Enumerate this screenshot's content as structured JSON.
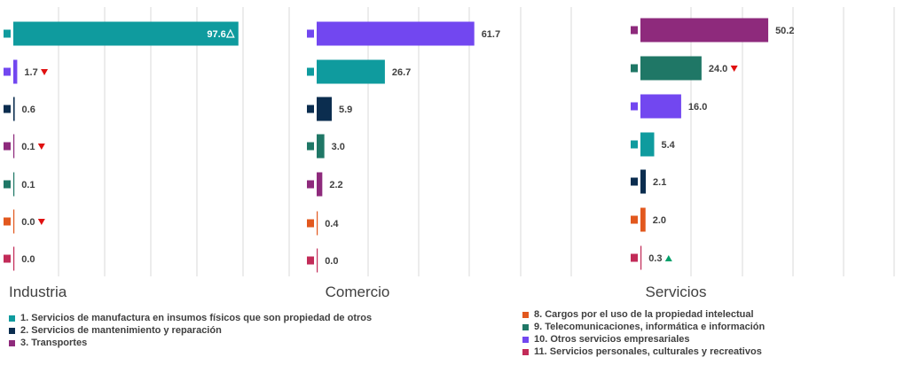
{
  "colors": {
    "s1": "#0f9b9e",
    "s2": "#0b2d4f",
    "s3": "#8e2a7c",
    "s8": "#e2581e",
    "s9": "#1f7766",
    "s10": "#7247f0",
    "s11": "#c22b58",
    "up_hollow": "#00a78e",
    "up_solid": "#00a06a",
    "down": "#e01010"
  },
  "chart_data": [
    {
      "type": "bar",
      "orientation": "horizontal",
      "title": "Industria",
      "xlim": [
        0,
        100
      ],
      "grid": true,
      "bars": [
        {
          "series": "s1",
          "value": 97.6,
          "label": "97.6",
          "marker": "up-hollow",
          "label_inside": true
        },
        {
          "series": "s10",
          "value": 1.7,
          "label": "1.7",
          "marker": "down"
        },
        {
          "series": "s2",
          "value": 0.6,
          "label": "0.6",
          "marker": ""
        },
        {
          "series": "s3",
          "value": 0.1,
          "label": "0.1",
          "marker": "down"
        },
        {
          "series": "s9",
          "value": 0.1,
          "label": "0.1",
          "marker": ""
        },
        {
          "series": "s8",
          "value": 0.0,
          "label": "0.0",
          "marker": "down"
        },
        {
          "series": "s11",
          "value": 0.0,
          "label": "0.0",
          "marker": ""
        }
      ]
    },
    {
      "type": "bar",
      "orientation": "horizontal",
      "title": "Comercio",
      "xlim": [
        0,
        100
      ],
      "grid": true,
      "bars": [
        {
          "series": "s10",
          "value": 61.7,
          "label": "61.7",
          "marker": ""
        },
        {
          "series": "s1",
          "value": 26.7,
          "label": "26.7",
          "marker": ""
        },
        {
          "series": "s2",
          "value": 5.9,
          "label": "5.9",
          "marker": ""
        },
        {
          "series": "s9",
          "value": 3.0,
          "label": "3.0",
          "marker": ""
        },
        {
          "series": "s3",
          "value": 2.2,
          "label": "2.2",
          "marker": ""
        },
        {
          "series": "s8",
          "value": 0.4,
          "label": "0.4",
          "marker": ""
        },
        {
          "series": "s11",
          "value": 0.0,
          "label": "0.0",
          "marker": ""
        }
      ]
    },
    {
      "type": "bar",
      "orientation": "horizontal",
      "title": "Servicios",
      "xlim": [
        0,
        100
      ],
      "grid": true,
      "bars": [
        {
          "series": "s3",
          "value": 50.2,
          "label": "50.2",
          "marker": ""
        },
        {
          "series": "s9",
          "value": 24.0,
          "label": "24.0",
          "marker": "down"
        },
        {
          "series": "s10",
          "value": 16.0,
          "label": "16.0",
          "marker": ""
        },
        {
          "series": "s1",
          "value": 5.4,
          "label": "5.4",
          "marker": ""
        },
        {
          "series": "s2",
          "value": 2.1,
          "label": "2.1",
          "marker": ""
        },
        {
          "series": "s8",
          "value": 2.0,
          "label": "2.0",
          "marker": ""
        },
        {
          "series": "s11",
          "value": 0.3,
          "label": "0.3",
          "marker": "up-solid"
        }
      ]
    }
  ],
  "legend": {
    "left": [
      {
        "series": "s1",
        "label": "1. Servicios de manufactura en insumos físicos que son propiedad de otros"
      },
      {
        "series": "s2",
        "label": "2. Servicios de mantenimiento y reparación"
      },
      {
        "series": "s3",
        "label": "3. Transportes"
      }
    ],
    "right": [
      {
        "series": "s8",
        "label": "8. Cargos por el uso de la propiedad intelectual"
      },
      {
        "series": "s9",
        "label": "9. Telecomunicaciones, informática e información"
      },
      {
        "series": "s10",
        "label": "10. Otros servicios empresariales"
      },
      {
        "series": "s11",
        "label": "11. Servicios personales, culturales y recreativos"
      }
    ]
  }
}
